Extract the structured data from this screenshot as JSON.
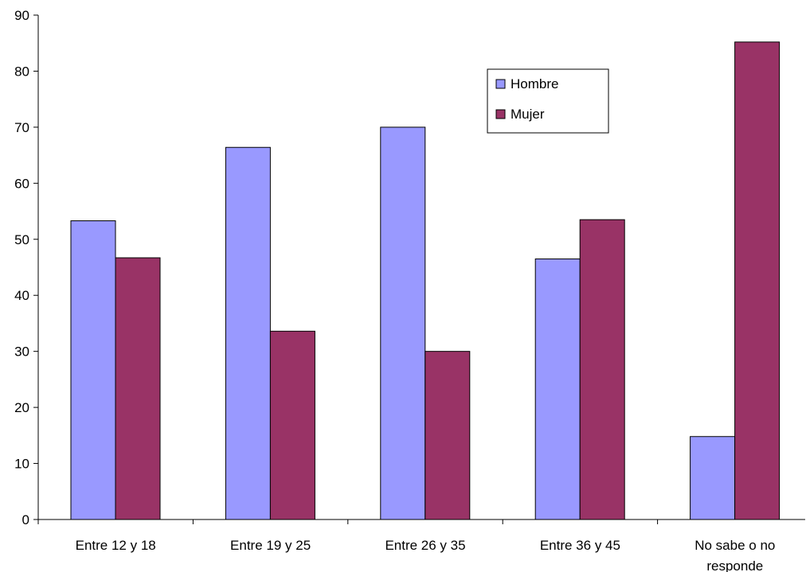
{
  "chart_data": {
    "type": "bar",
    "title": "",
    "xlabel": "",
    "ylabel": "",
    "categories": [
      [
        "Entre 12 y 18"
      ],
      [
        "Entre 19 y 25"
      ],
      [
        "Entre 26 y 35"
      ],
      [
        "Entre 36 y 45"
      ],
      [
        "No sabe o no",
        "responde"
      ]
    ],
    "series": [
      {
        "name": "Hombre",
        "color": "#9999FF",
        "values": [
          53.3,
          66.4,
          70.0,
          46.5,
          14.8
        ]
      },
      {
        "name": "Mujer",
        "color": "#993366",
        "values": [
          46.7,
          33.6,
          30.0,
          53.5,
          85.2
        ]
      }
    ],
    "ylim": [
      0,
      90
    ],
    "yticks": [
      0,
      10,
      20,
      30,
      40,
      50,
      60,
      70,
      80,
      90
    ],
    "grid": false,
    "legend_position": "top-right"
  }
}
